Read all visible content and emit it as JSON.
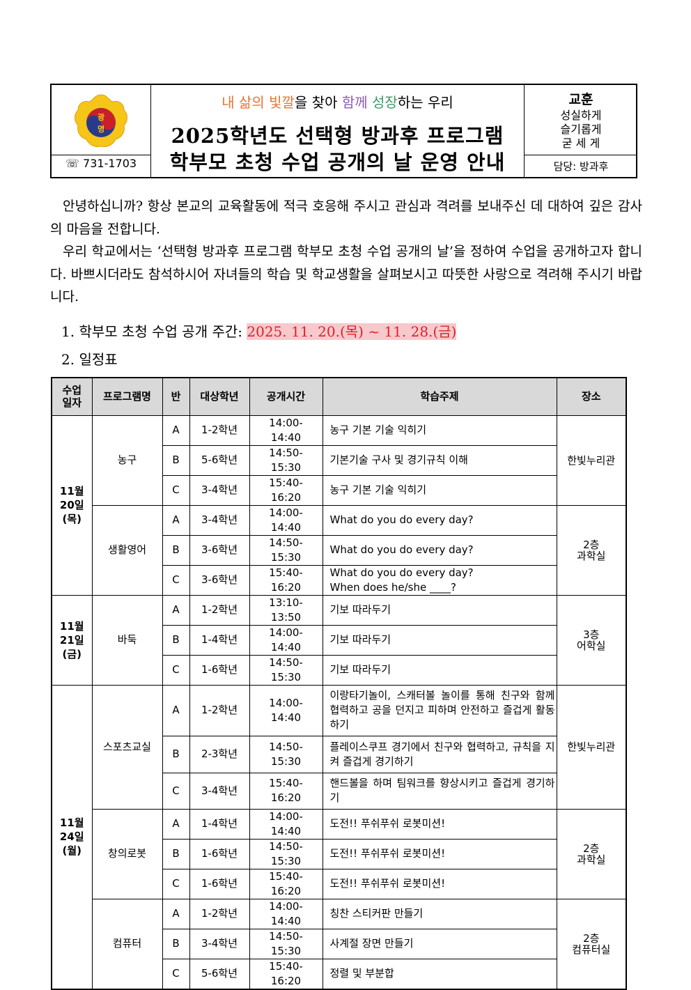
{
  "header": {
    "phone": "☏ 731-1703",
    "slogan": [
      {
        "text": "내 삶의 ",
        "color": "#e8742e"
      },
      {
        "text": "빛깔",
        "color": "#e8742e"
      },
      {
        "text": "을 찾아 ",
        "color": "#000000"
      },
      {
        "text": "함께",
        "color": "#8e5bb5"
      },
      {
        "text": " ",
        "color": "#000000"
      },
      {
        "text": "성장",
        "color": "#3a9a6a"
      },
      {
        "text": "하는 우리",
        "color": "#000000"
      }
    ],
    "title_line1": "2025학년도 선택형 방과후 프로그램",
    "title_line2": "학부모 초청 수업 공개의 날 운영 안내",
    "motto_heading": "교훈",
    "motto": [
      "성실하게",
      "슬기롭게",
      "굳 세 게"
    ],
    "department": "담당: 방과후",
    "logo_text": "광명"
  },
  "body": {
    "para1": "안녕하십니까? 항상 본교의 교육활동에 적극 호응해 주시고 관심과 격려를 보내주신 데 대하여 깊은 감사의 마음을 전합니다.",
    "para2": "우리 학교에서는 ‘선택형 방과후 프로그램 학부모 초청 수업 공개의 날’을 정하여 수업을 공개하고자 합니다. 바쁘시더라도 참석하시어 자녀들의 학습 및 학교생활을 살펴보시고 따뜻한 사랑으로 격려해 주시기 바랍니다.",
    "item1_label": "1. 학부모 초청 수업 공개 주간: ",
    "item1_value": "2025. 11. 20.(목) ~ 11. 28.(금)",
    "item2_label": "2. 일정표"
  },
  "table": {
    "headers": [
      "수업\n일자",
      "프로그램명",
      "반",
      "대상학년",
      "공개시간",
      "학습주제",
      "장소"
    ],
    "rows": [
      {
        "date": "11월\n20일\n(목)",
        "program": "농구",
        "place": "한빛누리관",
        "cls": "A",
        "grade": "1-2학년",
        "time": "14:00-14:40",
        "topic": "농구 기본 기술 익히기"
      },
      {
        "cls": "B",
        "grade": "5-6학년",
        "time": "14:50-15:30",
        "topic": "기본기술 구사 및 경기규칙 이해"
      },
      {
        "cls": "C",
        "grade": "3-4학년",
        "time": "15:40-16:20",
        "topic": "농구 기본 기술 익히기"
      },
      {
        "program": "생활영어",
        "place": "2층\n과학실",
        "cls": "A",
        "grade": "3-4학년",
        "time": "14:00-14:40",
        "topic": "What do you do every day?"
      },
      {
        "cls": "B",
        "grade": "3-6학년",
        "time": "14:50-15:30",
        "topic": "What do you do every day?"
      },
      {
        "cls": "C",
        "grade": "3-6학년",
        "time": "15:40-16:20",
        "topic": "What do you do every day?\nWhen does he/she ____?"
      },
      {
        "date": "11월\n21일\n(금)",
        "program": "바둑",
        "place": "3층\n어학실",
        "cls": "A",
        "grade": "1-2학년",
        "time": "13:10-13:50",
        "topic": "기보 따라두기"
      },
      {
        "cls": "B",
        "grade": "1-4학년",
        "time": "14:00-14:40",
        "topic": "기보 따라두기"
      },
      {
        "cls": "C",
        "grade": "1-6학년",
        "time": "14:50-15:30",
        "topic": "기보 따라두기"
      },
      {
        "date": "11월\n24일\n(월)",
        "program": "스포츠교실",
        "place": "한빛누리관",
        "cls": "A",
        "grade": "1-2학년",
        "time": "14:00-14:40",
        "topic": "이랑타기놀이, 스캐터볼 놀이를 통해 친구와 함께 협력하고 공을 던지고 피하며 안전하고 즐겁게 활동하기"
      },
      {
        "cls": "B",
        "grade": "2-3학년",
        "time": "14:50-15:30",
        "topic": "플레이스쿠프 경기에서 친구와 협력하고, 규칙을 지켜 즐겁게 경기하기"
      },
      {
        "cls": "C",
        "grade": "3-4학년",
        "time": "15:40-16:20",
        "topic": "핸드볼을 하며 팀워크를 향상시키고 즐겁게 경기하기"
      },
      {
        "program": "창의로봇",
        "place": "2층\n과학실",
        "cls": "A",
        "grade": "1-4학년",
        "time": "14:00-14:40",
        "topic": "도전!! 푸쉬푸쉬 로봇미션!"
      },
      {
        "cls": "B",
        "grade": "1-6학년",
        "time": "14:50-15:30",
        "topic": "도전!! 푸쉬푸쉬 로봇미션!"
      },
      {
        "cls": "C",
        "grade": "1-6학년",
        "time": "15:40-16:20",
        "topic": "도전!! 푸쉬푸쉬 로봇미션!"
      },
      {
        "program": "컴퓨터",
        "place": "2층\n컴퓨터실",
        "cls": "A",
        "grade": "1-2학년",
        "time": "14:00-14:40",
        "topic": "칭찬 스티커판 만들기"
      },
      {
        "cls": "B",
        "grade": "3-4학년",
        "time": "14:50-15:30",
        "topic": "사계절 장면 만들기"
      },
      {
        "cls": "C",
        "grade": "5-6학년",
        "time": "15:40-16:20",
        "topic": "정렬 및 부분합"
      }
    ]
  }
}
